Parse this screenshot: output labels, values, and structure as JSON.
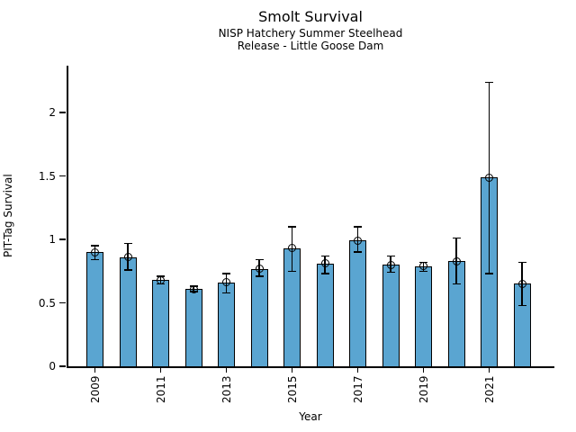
{
  "chart_data": {
    "type": "bar",
    "title": "Smolt Survival",
    "subtitle1": "NISP Hatchery Summer Steelhead",
    "subtitle2": "Release - Little Goose Dam",
    "xlabel": "Year",
    "ylabel": "PIT-Tag Survival",
    "categories": [
      2009,
      2010,
      2011,
      2012,
      2013,
      2014,
      2015,
      2016,
      2017,
      2018,
      2019,
      2020,
      2021,
      2022
    ],
    "values": [
      0.9,
      0.86,
      0.68,
      0.61,
      0.66,
      0.77,
      0.93,
      0.81,
      0.99,
      0.8,
      0.79,
      0.83,
      1.49,
      0.65
    ],
    "error_low": [
      0.84,
      0.76,
      0.65,
      0.59,
      0.58,
      0.71,
      0.75,
      0.73,
      0.9,
      0.74,
      0.75,
      0.65,
      0.73,
      0.48
    ],
    "error_high": [
      0.95,
      0.97,
      0.71,
      0.63,
      0.73,
      0.84,
      1.1,
      0.87,
      1.1,
      0.87,
      0.82,
      1.01,
      2.24,
      0.82
    ],
    "ylim": [
      0,
      2.37
    ],
    "yticks": [
      0,
      0.5,
      1,
      1.5,
      2
    ],
    "ytick_labels": [
      "0",
      "0.5",
      "1",
      "1.5",
      "2"
    ],
    "xticks": [
      2009,
      2011,
      2013,
      2015,
      2017,
      2019,
      2021
    ],
    "xtick_rotation": 90,
    "grid": false,
    "legend": null,
    "bar_color": "#5aa5d1",
    "bar_edge_color": "#000000",
    "error_color": "#000000",
    "marker": "open-circle"
  }
}
